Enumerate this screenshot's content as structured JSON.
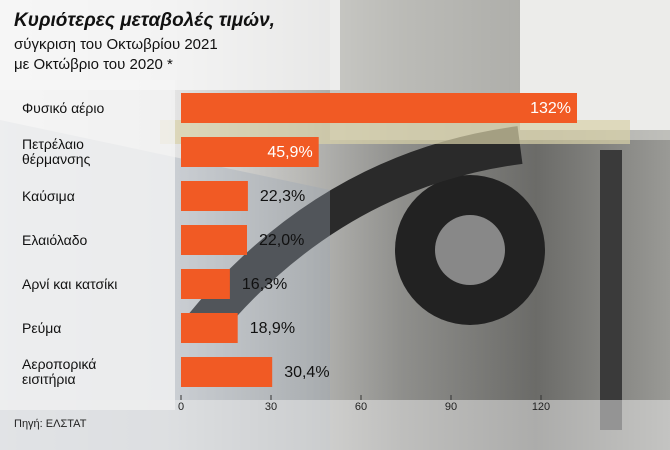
{
  "chart_data": {
    "type": "bar",
    "orientation": "horizontal",
    "title": "Κυριότερες μεταβολές τιμών,",
    "subtitle": [
      "σύγκριση του Οκτωβρίου 2021",
      "με Οκτώβριο του 2020 *"
    ],
    "source": "Πηγή: ΕΛΣΤΑΤ",
    "categories": [
      "Φυσικό αέριο",
      "Πετρέλαιο θέρμανσης",
      "Καύσιμα",
      "Ελαιόλαδο",
      "Αρνί και κατσίκι",
      "Ρεύμα",
      "Αεροπορικά εισιτήρια"
    ],
    "values": [
      132,
      45.9,
      22.3,
      22.0,
      16.3,
      18.9,
      30.4
    ],
    "value_labels": [
      "132%",
      "45,9%",
      "22,3%",
      "22,0%",
      "16,3%",
      "18,9%",
      "30,4%"
    ],
    "color": "#f15a24",
    "xlim": [
      0,
      140
    ],
    "xticks": [
      0,
      30,
      60,
      90,
      120
    ]
  }
}
